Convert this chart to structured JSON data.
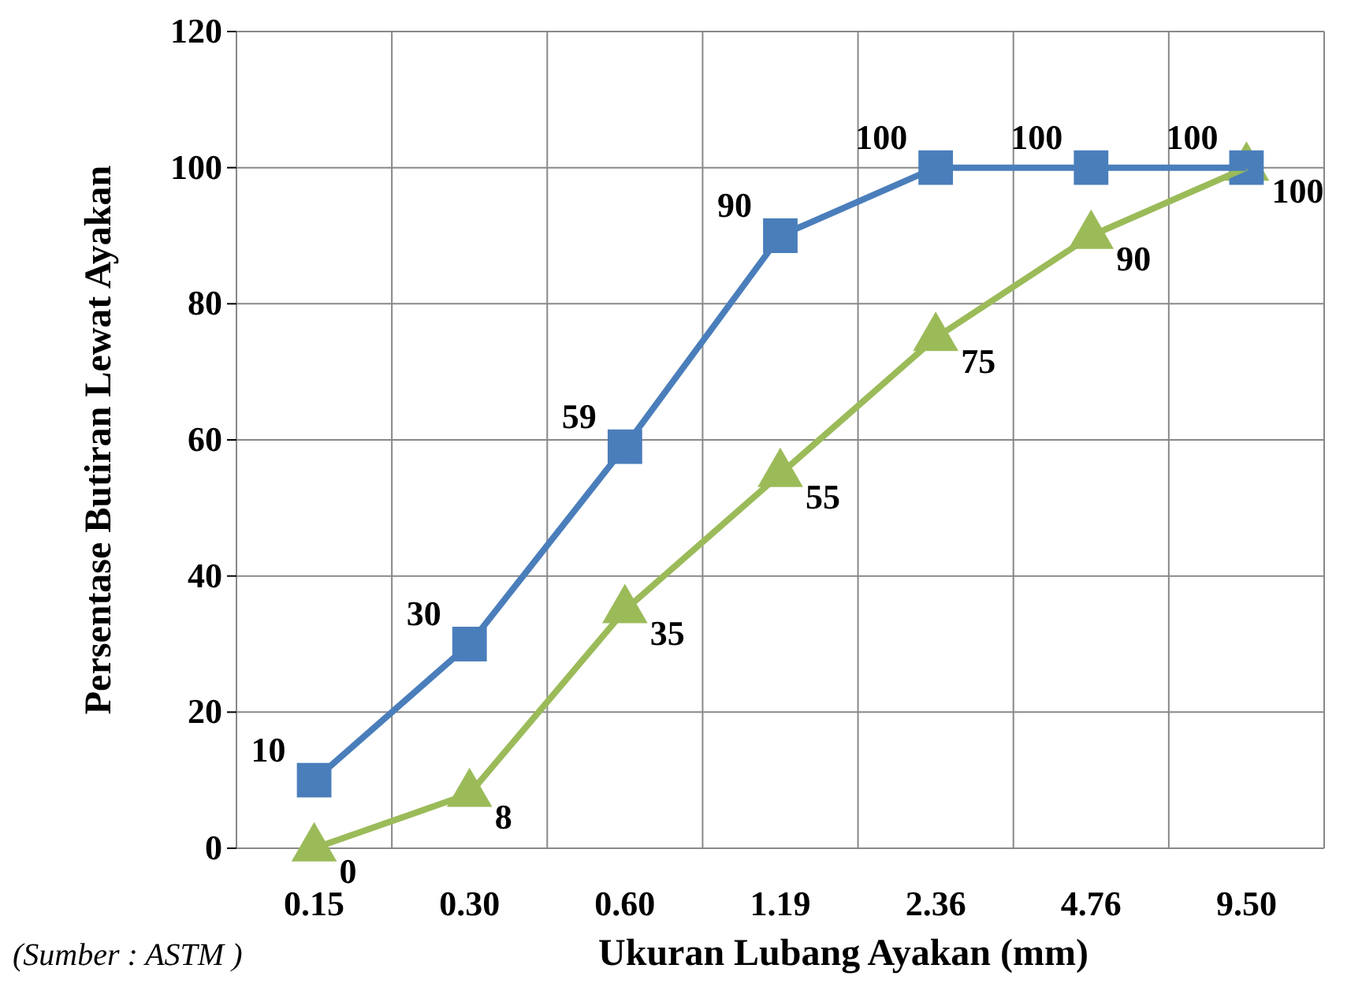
{
  "chart_data": {
    "type": "line",
    "xlabel": "Ukuran Lubang Ayakan (mm)",
    "ylabel": "Persentase Butiran Lewat Ayakan",
    "categories": [
      "0.15",
      "0.30",
      "0.60",
      "1.19",
      "2.36",
      "4.76",
      "9.50"
    ],
    "series": [
      {
        "color": "#4a7ebb",
        "marker": "square",
        "values": [
          10,
          30,
          59,
          90,
          100,
          100,
          100
        ]
      },
      {
        "color": "#9bbb59",
        "marker": "triangle",
        "values": [
          0,
          8,
          35,
          55,
          75,
          90,
          100
        ]
      }
    ],
    "ylim": [
      0,
      120
    ],
    "yticks": [
      0,
      20,
      40,
      60,
      80,
      100,
      120
    ],
    "grid": true,
    "data_labels": true,
    "line_style": "solid",
    "annotations": [
      "(Sumber : ASTM )"
    ]
  }
}
